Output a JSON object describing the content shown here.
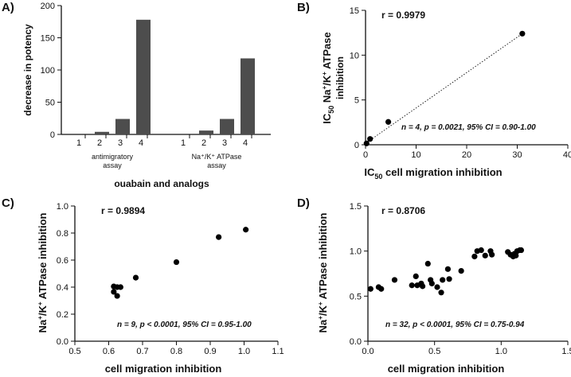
{
  "chart_data": [
    {
      "panel": "A)",
      "type": "bar",
      "ylabel": "decrease in potency",
      "xlabel": "ouabain and analogs",
      "ylim": [
        0,
        200
      ],
      "yticks": [
        0,
        50,
        100,
        150,
        200
      ],
      "groups": [
        {
          "name": "antimigratory assay",
          "name_lines": [
            "antimigratory",
            "assay"
          ],
          "categories": [
            "1",
            "2",
            "3",
            "4"
          ],
          "values": [
            0,
            4,
            24,
            178
          ]
        },
        {
          "name": "Na+/K+ ATPase assay",
          "name_lines": [
            "Na⁺/K⁺ ATPase",
            "assay"
          ],
          "categories": [
            "1",
            "2",
            "3",
            "4"
          ],
          "values": [
            0,
            6,
            24,
            118
          ]
        }
      ],
      "bar_color": "#4d4d4d"
    },
    {
      "panel": "B)",
      "type": "scatter",
      "xlabel": "IC50 cell migration inhibition",
      "xlabel_parts": [
        "IC",
        "50",
        " cell migration inhibition"
      ],
      "ylabel": "IC50 Na+/K+ ATPase inhibition",
      "ylabel_parts": [
        "IC",
        "50",
        " Na",
        "+",
        "/K",
        "+",
        " ATPase"
      ],
      "ylabel_line2": "inhibition",
      "xlim": [
        0,
        40
      ],
      "ylim": [
        0,
        15
      ],
      "xticks": [
        0,
        10,
        20,
        30,
        40
      ],
      "yticks": [
        0,
        5,
        10,
        15
      ],
      "r_text": "r = 0.9979",
      "note": "n = 4, p = 0.0021, 95% CI = 0.90-1.00",
      "x": [
        0.2,
        0.9,
        4.5,
        31
      ],
      "y": [
        0.15,
        0.65,
        2.55,
        12.4
      ],
      "fit_line": {
        "x": [
          0,
          31
        ],
        "y": [
          0.15,
          12.4
        ],
        "style": "dotted"
      }
    },
    {
      "panel": "C)",
      "type": "scatter",
      "xlabel": "cell migration inhibition",
      "ylabel": "Na+/K+ ATPase inhibition",
      "ylabel_parts": [
        "Na",
        "+",
        "/K",
        "+",
        " ATPase inhibition"
      ],
      "xlim": [
        0.5,
        1.1
      ],
      "ylim": [
        0.0,
        1.0
      ],
      "xticks": [
        0.5,
        0.6,
        0.7,
        0.8,
        0.9,
        1.0,
        1.1
      ],
      "yticks": [
        0.0,
        0.2,
        0.4,
        0.6,
        0.8,
        1.0
      ],
      "r_text": "r = 0.9894",
      "note": "n = 9, p < 0.0001, 95% CI = 0.95-1.00",
      "x": [
        0.615,
        0.625,
        0.635,
        0.615,
        0.625,
        0.68,
        0.8,
        0.925,
        1.005
      ],
      "y": [
        0.405,
        0.4,
        0.4,
        0.365,
        0.335,
        0.47,
        0.585,
        0.77,
        0.825
      ]
    },
    {
      "panel": "D)",
      "type": "scatter",
      "xlabel": "cell migration inhibition",
      "ylabel": "Na+/K+ ATPase inhibition",
      "ylabel_parts": [
        "Na",
        "+",
        "/K",
        "+",
        " ATPase inhibition"
      ],
      "xlim": [
        0.0,
        1.5
      ],
      "ylim": [
        0.0,
        1.5
      ],
      "xticks": [
        0.0,
        0.5,
        1.0,
        1.5
      ],
      "yticks": [
        0.0,
        0.5,
        1.0,
        1.5
      ],
      "r_text": "r = 0.8706",
      "note": "n = 32, p < 0.0001, 95% CI = 0.75-0.94",
      "x": [
        0.02,
        0.08,
        0.1,
        0.2,
        0.33,
        0.36,
        0.37,
        0.4,
        0.41,
        0.45,
        0.47,
        0.48,
        0.52,
        0.55,
        0.56,
        0.6,
        0.61,
        0.7,
        0.8,
        0.82,
        0.85,
        0.88,
        0.92,
        0.93,
        1.05,
        1.07,
        1.09,
        1.1,
        1.11,
        1.12,
        1.14,
        1.15
      ],
      "y": [
        0.58,
        0.6,
        0.58,
        0.68,
        0.62,
        0.72,
        0.62,
        0.64,
        0.61,
        0.86,
        0.68,
        0.64,
        0.6,
        0.54,
        0.68,
        0.8,
        0.69,
        0.78,
        0.94,
        1.0,
        1.01,
        0.95,
        1.0,
        0.96,
        0.99,
        0.96,
        0.94,
        0.97,
        0.95,
        1.0,
        1.01,
        1.01
      ]
    }
  ]
}
